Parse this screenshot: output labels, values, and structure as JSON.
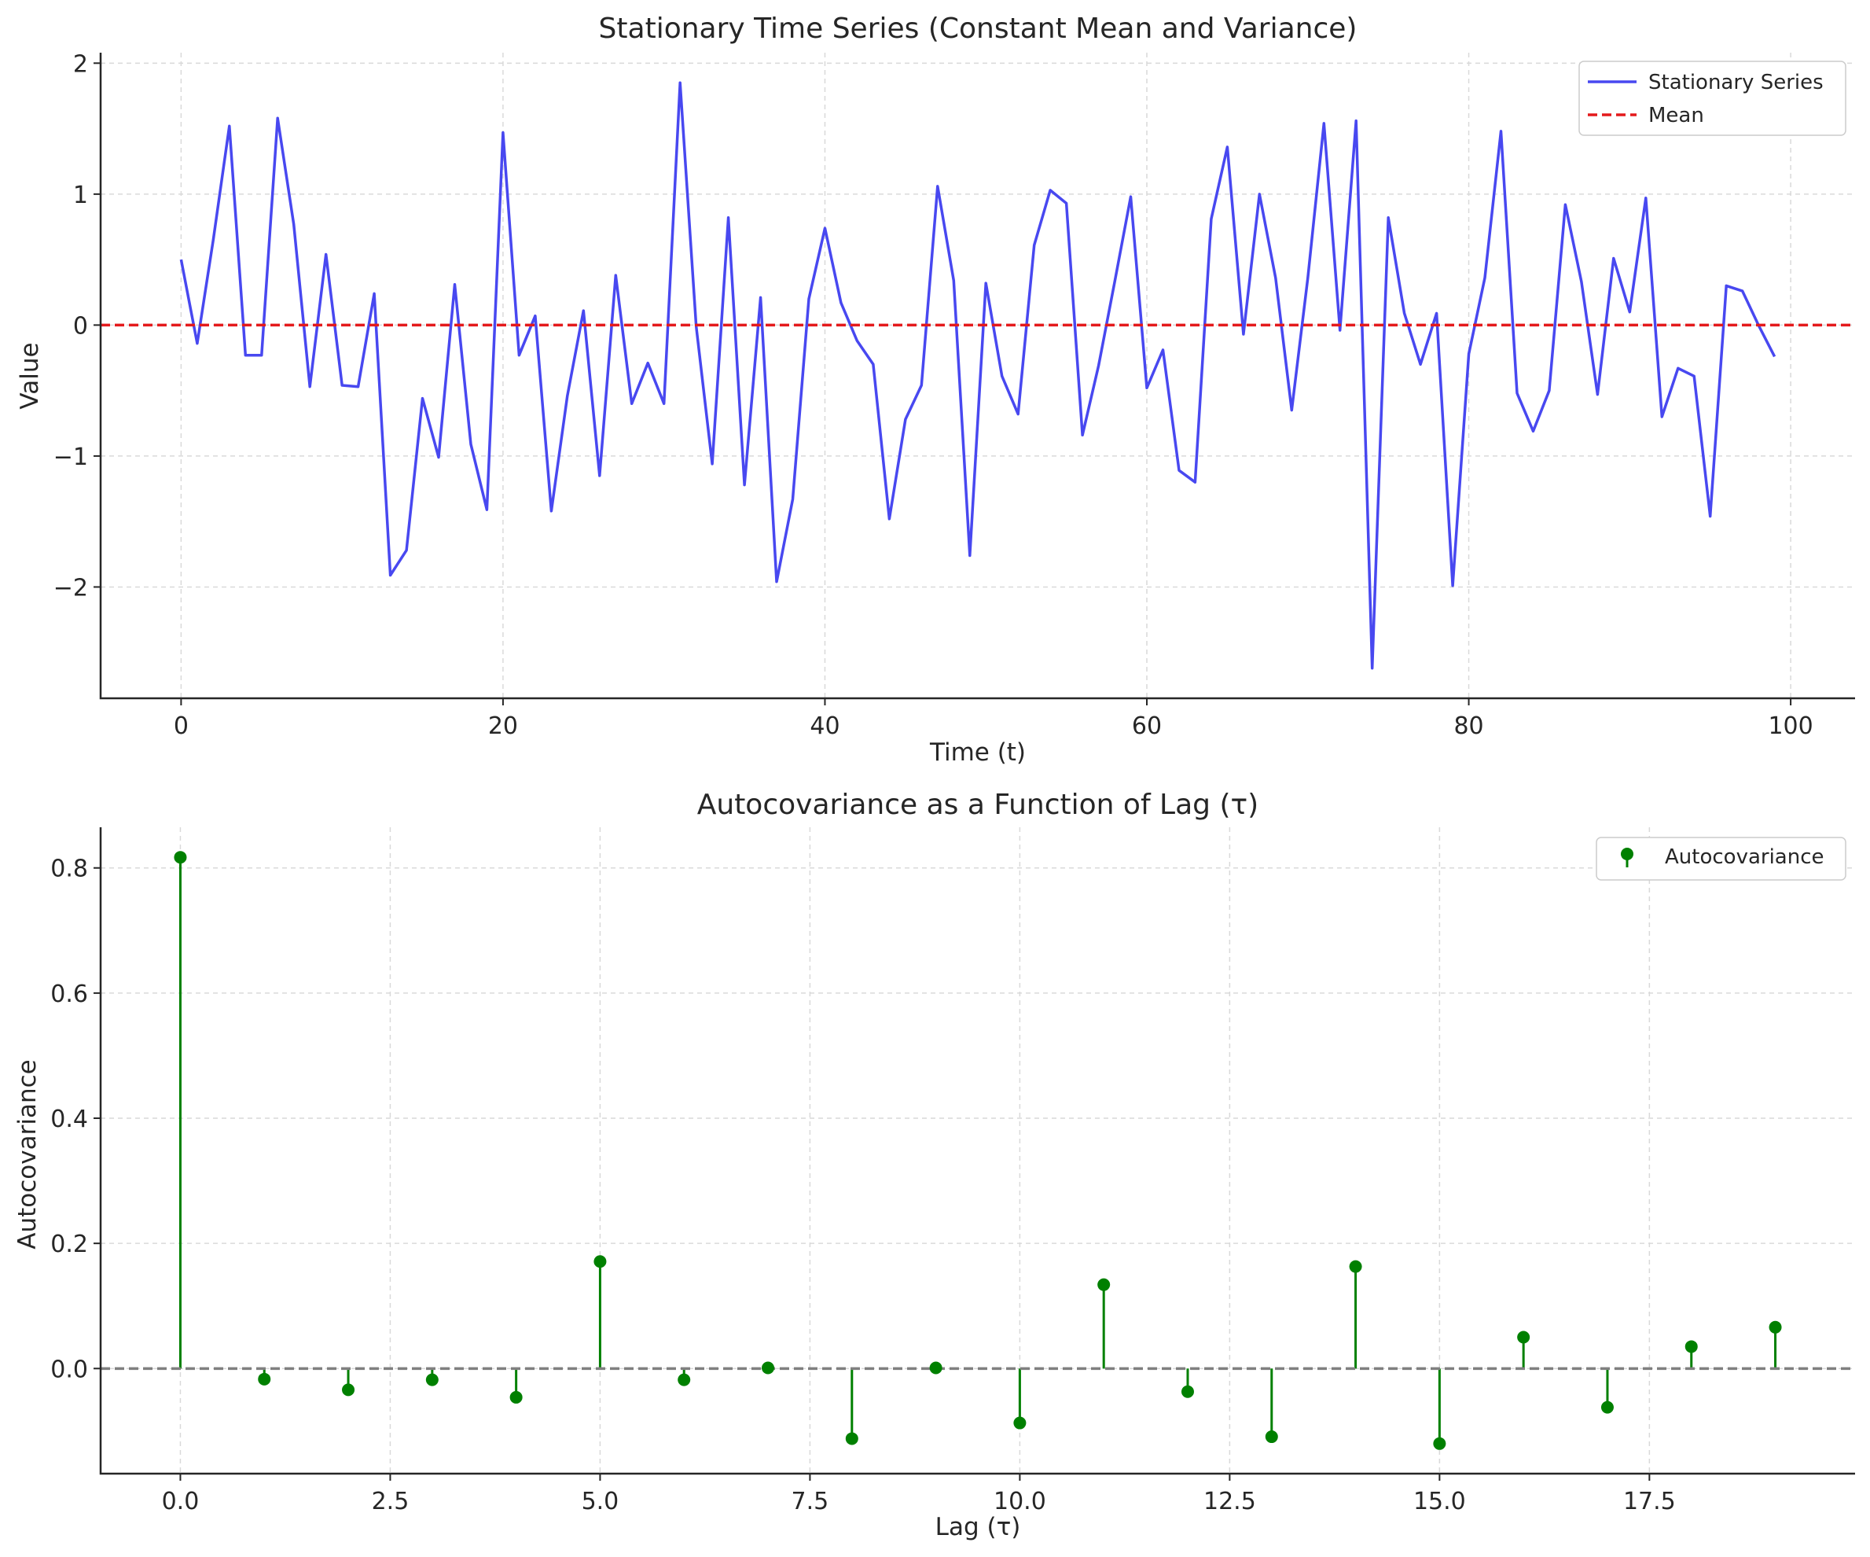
{
  "chart_data": [
    {
      "type": "line",
      "title": "Stationary Time Series (Constant Mean and Variance)",
      "xlabel": "Time (t)",
      "ylabel": "Value",
      "xlim": [
        -5,
        104
      ],
      "ylim": [
        -2.85,
        2.08
      ],
      "xticks": [
        0,
        20,
        40,
        60,
        80,
        100
      ],
      "yticks": [
        -2,
        -1,
        0,
        1,
        2
      ],
      "xtick_labels": [
        "0",
        "20",
        "40",
        "60",
        "80",
        "100"
      ],
      "ytick_labels": [
        "−2",
        "−1",
        "0",
        "1",
        "2"
      ],
      "grid": true,
      "legend_position": "top-right",
      "series": [
        {
          "name": "Stationary Series",
          "color": "#4848f0",
          "style": "solid",
          "x": [
            0,
            1,
            2,
            3,
            4,
            5,
            6,
            7,
            8,
            9,
            10,
            11,
            12,
            13,
            14,
            15,
            16,
            17,
            18,
            19,
            20,
            21,
            22,
            23,
            24,
            25,
            26,
            27,
            28,
            29,
            30,
            31,
            32,
            33,
            34,
            35,
            36,
            37,
            38,
            39,
            40,
            41,
            42,
            43,
            44,
            45,
            46,
            47,
            48,
            49,
            50,
            51,
            52,
            53,
            54,
            55,
            56,
            57,
            58,
            59,
            60,
            61,
            62,
            63,
            64,
            65,
            66,
            67,
            68,
            69,
            70,
            71,
            72,
            73,
            74,
            75,
            76,
            77,
            78,
            79,
            80,
            81,
            82,
            83,
            84,
            85,
            86,
            87,
            88,
            89,
            90,
            91,
            92,
            93,
            94,
            95,
            96,
            97,
            98,
            99
          ],
          "values": [
            0.5,
            -0.14,
            0.65,
            1.52,
            -0.23,
            -0.23,
            1.58,
            0.77,
            -0.47,
            0.54,
            -0.46,
            -0.47,
            0.24,
            -1.91,
            -1.72,
            -0.56,
            -1.01,
            0.31,
            -0.91,
            -1.41,
            1.47,
            -0.23,
            0.07,
            -1.42,
            -0.54,
            0.11,
            -1.15,
            0.38,
            -0.6,
            -0.29,
            -0.6,
            1.85,
            -0.01,
            -1.06,
            0.82,
            -1.22,
            0.21,
            -1.96,
            -1.33,
            0.2,
            0.74,
            0.17,
            -0.12,
            -0.3,
            -1.48,
            -0.72,
            -0.46,
            1.06,
            0.34,
            -1.76,
            0.32,
            -0.39,
            -0.68,
            0.61,
            1.03,
            0.93,
            -0.84,
            -0.31,
            0.33,
            0.98,
            -0.48,
            -0.19,
            -1.11,
            -1.2,
            0.81,
            1.36,
            -0.07,
            1.0,
            0.36,
            -0.65,
            0.36,
            1.54,
            -0.04,
            1.56,
            -2.62,
            0.82,
            0.09,
            -0.3,
            0.09,
            -1.99,
            -0.22,
            0.36,
            1.48,
            -0.52,
            -0.81,
            -0.5,
            0.92,
            0.33,
            -0.53,
            0.51,
            0.1,
            0.97,
            -0.7,
            -0.33,
            -0.39,
            -1.46,
            0.3,
            0.26,
            0.0,
            -0.24
          ]
        },
        {
          "name": "Mean",
          "color": "#e41a1c",
          "style": "dashed",
          "constant": 0
        }
      ]
    },
    {
      "type": "stem",
      "title": "Autocovariance as a Function of Lag (τ)",
      "xlabel": "Lag (τ)",
      "ylabel": "Autocovariance",
      "xlim": [
        -0.95,
        19.95
      ],
      "ylim": [
        -0.168,
        0.865
      ],
      "xticks": [
        0,
        2.5,
        5,
        7.5,
        10,
        12.5,
        15,
        17.5
      ],
      "yticks": [
        0,
        0.2,
        0.4,
        0.6,
        0.8
      ],
      "xtick_labels": [
        "0.0",
        "2.5",
        "5.0",
        "7.5",
        "10.0",
        "12.5",
        "15.0",
        "17.5"
      ],
      "ytick_labels": [
        "0.0",
        "0.2",
        "0.4",
        "0.6",
        "0.8"
      ],
      "grid": true,
      "baseline": 0,
      "baseline_color": "#808080",
      "legend_position": "top-right",
      "series": [
        {
          "name": "Autocovariance",
          "color": "#008000",
          "x": [
            0,
            1,
            2,
            3,
            4,
            5,
            6,
            7,
            8,
            9,
            10,
            11,
            12,
            13,
            14,
            15,
            16,
            17,
            18,
            19
          ],
          "values": [
            0.817,
            -0.017,
            -0.034,
            -0.018,
            -0.046,
            0.171,
            -0.018,
            0.001,
            -0.112,
            0.001,
            -0.087,
            0.134,
            -0.037,
            -0.109,
            0.163,
            -0.12,
            0.05,
            -0.062,
            0.035,
            0.066
          ]
        }
      ]
    }
  ]
}
